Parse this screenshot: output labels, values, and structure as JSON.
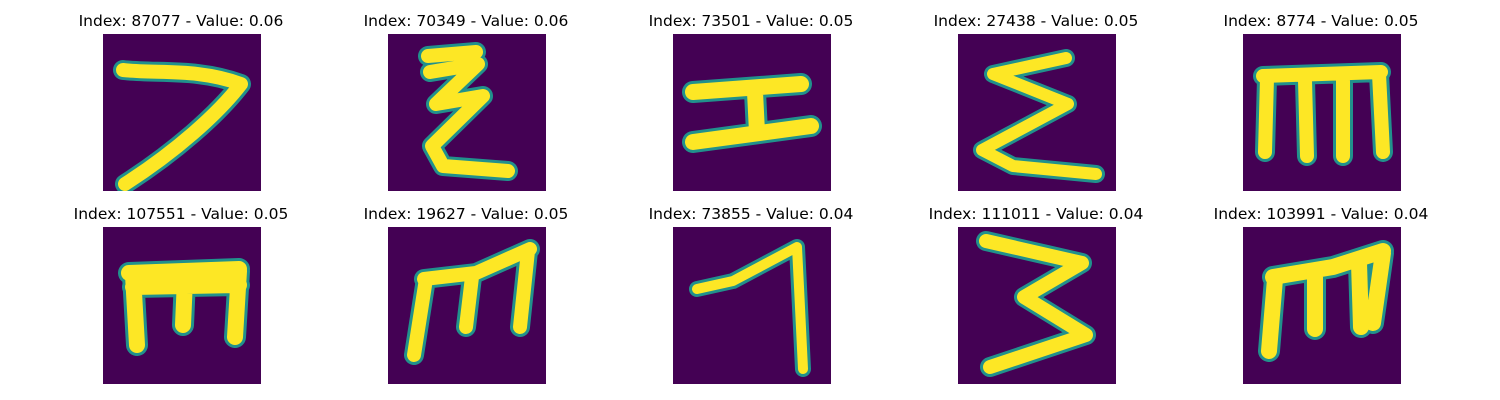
{
  "colors": {
    "background": "#440154",
    "stroke": "#fde725",
    "edge": "#21918c"
  },
  "images": [
    {
      "title": "Index: 87077 - Value: 0.06",
      "glyph": "seven-like"
    },
    {
      "title": "Index: 70349 - Value: 0.06",
      "glyph": "sigma-stacked"
    },
    {
      "title": "Index: 73501 - Value: 0.05",
      "glyph": "i-beam"
    },
    {
      "title": "Index: 27438 - Value: 0.05",
      "glyph": "sigma-like"
    },
    {
      "title": "Index: 8774 - Value: 0.05",
      "glyph": "m-like"
    },
    {
      "title": "Index: 107551 - Value: 0.05",
      "glyph": "m-like"
    },
    {
      "title": "Index: 19627 - Value: 0.05",
      "glyph": "m-like"
    },
    {
      "title": "Index: 73855 - Value: 0.04",
      "glyph": "seven-like"
    },
    {
      "title": "Index: 111011 - Value: 0.04",
      "glyph": "three-like"
    },
    {
      "title": "Index: 103991 - Value: 0.04",
      "glyph": "m-like"
    }
  ]
}
